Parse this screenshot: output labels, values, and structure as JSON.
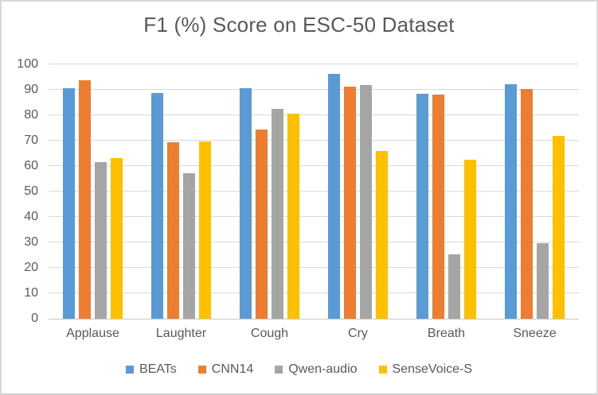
{
  "chart_data": {
    "type": "bar",
    "title": "F1 (%) Score on ESC-50 Dataset",
    "categories": [
      "Applause",
      "Laughter",
      "Cough",
      "Cry",
      "Breath",
      "Sneeze"
    ],
    "series": [
      {
        "name": "BEATs",
        "color": "#5B9BD5",
        "values": [
          90.5,
          88.6,
          90.5,
          96.4,
          88.4,
          92.2
        ]
      },
      {
        "name": "CNN14",
        "color": "#ED7D31",
        "values": [
          93.9,
          69.3,
          74.4,
          91.2,
          88.0,
          90.4
        ]
      },
      {
        "name": "Qwen-audio",
        "color": "#A5A5A5",
        "values": [
          61.6,
          57.2,
          82.4,
          92.0,
          25.4,
          29.6
        ]
      },
      {
        "name": "SenseVoice-S",
        "color": "#FFC000",
        "values": [
          63.0,
          69.6,
          80.5,
          65.8,
          62.5,
          72.0
        ]
      }
    ],
    "xlabel": "",
    "ylabel": "",
    "ylim": [
      0,
      100
    ],
    "ytick_step": 10,
    "grid": true,
    "legend_position": "bottom"
  },
  "colors": {
    "text": "#595959",
    "gridline": "#D9D9D9",
    "axis_line": "#C6C6C6",
    "frame_border": "#D9D9D9",
    "background": "#FFFFFF"
  }
}
